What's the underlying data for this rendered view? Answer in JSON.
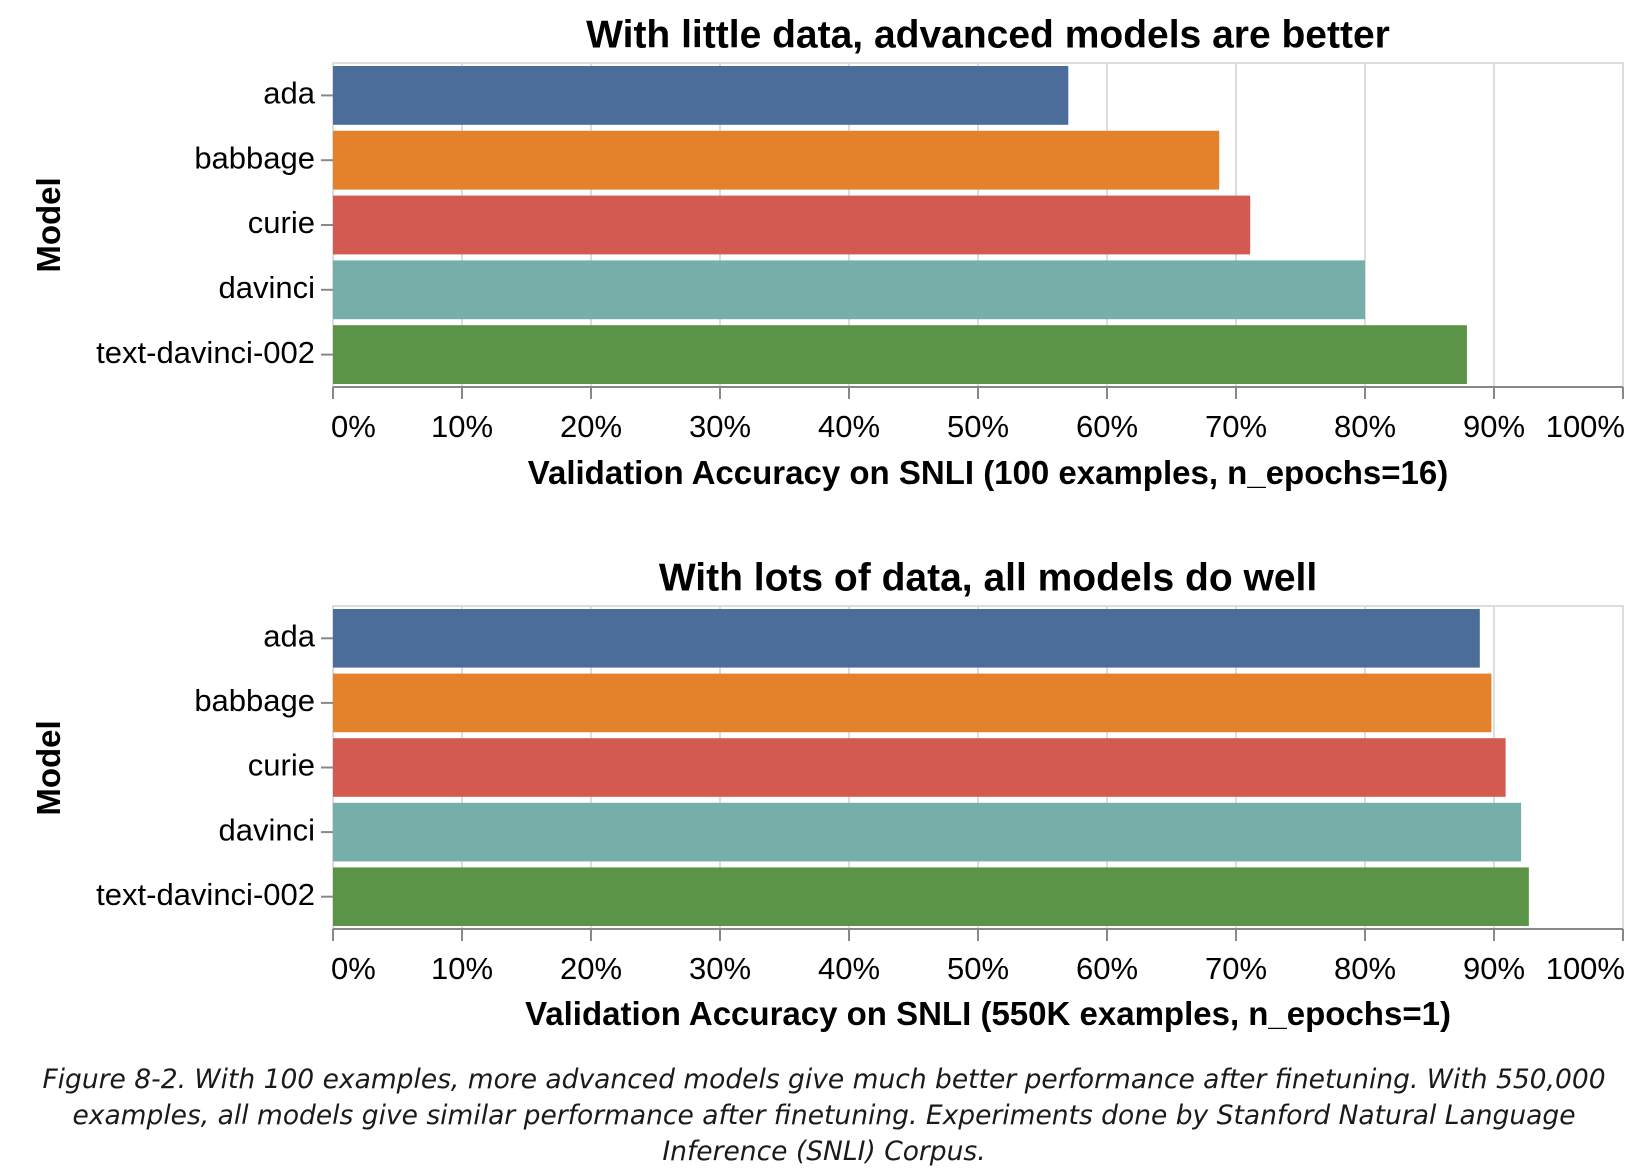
{
  "chart_data": [
    {
      "type": "bar",
      "orientation": "horizontal",
      "title": "With little data, advanced models are better",
      "xlabel": "Validation Accuracy on SNLI (100 examples, n_epochs=16)",
      "ylabel": "Model",
      "categories": [
        "ada",
        "babbage",
        "curie",
        "davinci",
        "text-davinci-002"
      ],
      "values": [
        0.57,
        0.687,
        0.711,
        0.8,
        0.879
      ],
      "colors": [
        "#4c6c9a",
        "#e4822c",
        "#d35a50",
        "#76aeaa",
        "#5b9447"
      ],
      "xlim": [
        0,
        1
      ],
      "xticks": [
        "0%",
        "10%",
        "20%",
        "30%",
        "40%",
        "50%",
        "60%",
        "70%",
        "80%",
        "90%",
        "100%"
      ],
      "grid": true
    },
    {
      "type": "bar",
      "orientation": "horizontal",
      "title": "With lots of data, all models do well",
      "xlabel": "Validation Accuracy on SNLI (550K examples, n_epochs=1)",
      "ylabel": "Model",
      "categories": [
        "ada",
        "babbage",
        "curie",
        "davinci",
        "text-davinci-002"
      ],
      "values": [
        0.889,
        0.898,
        0.909,
        0.921,
        0.927
      ],
      "colors": [
        "#4c6c9a",
        "#e4822c",
        "#d35a50",
        "#76aeaa",
        "#5b9447"
      ],
      "xlim": [
        0,
        1
      ],
      "xticks": [
        "0%",
        "10%",
        "20%",
        "30%",
        "40%",
        "50%",
        "60%",
        "70%",
        "80%",
        "90%",
        "100%"
      ],
      "grid": true
    }
  ],
  "caption": "Figure 8-2. With 100 examples, more advanced models give much better performance after finetuning. With 550,000 examples, all models give similar performance after finetuning. Experiments done by Stanford Natural Language Inference (SNLI) Corpus."
}
